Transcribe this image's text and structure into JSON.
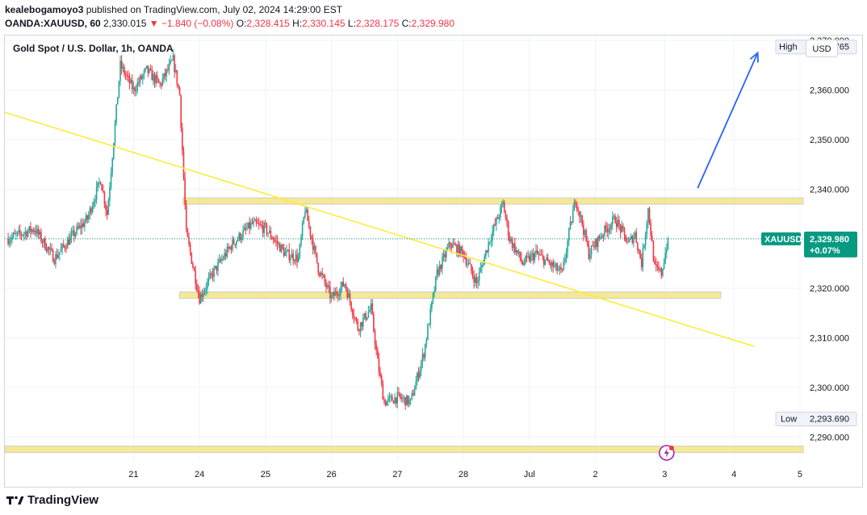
{
  "header": {
    "publisher_user": "kealebogamoyo3",
    "publisher_rest": " published on TradingView.com, July 02, 2024 14:29:00 EST",
    "symbol": "OANDA:XAUUSD, 60",
    "last": "2,330.015",
    "arrow": "▼",
    "change": "−1.840 (−0.08%)",
    "o_label": "O:",
    "o_val": "2,328.415",
    "h_label": "H:",
    "h_val": "2,330.145",
    "l_label": "L:",
    "l_val": "2,328.175",
    "c_label": "C:",
    "c_val": "2,329.980"
  },
  "plot_title": "Gold Spot / U.S. Dollar, 1h, OANDA",
  "currency_button": "USD",
  "footer_brand": "TradingView",
  "colors": {
    "up": "#26a69a",
    "down": "#f23645",
    "trendline": "#ffeb3b",
    "zone": "#f5e68c",
    "arrow": "#2962ff",
    "price_tag": "#089981",
    "grid": "#f0f3fa"
  },
  "chart_data": {
    "type": "candlestick",
    "title": "Gold Spot / U.S. Dollar, 1h, OANDA",
    "ylim": [
      2285,
      2371
    ],
    "y_ticks": [
      2290,
      2300,
      2310,
      2320,
      2330,
      2340,
      2350,
      2360,
      2370
    ],
    "y_tick_labels": [
      "2,290.000",
      "2,300.000",
      "2,310.000",
      "2,320.000",
      "2,330.000",
      "2,340.000",
      "2,350.000",
      "2,360.000",
      "2,370.000"
    ],
    "x_ticks": [
      {
        "label": "21",
        "t": 19
      },
      {
        "label": "24",
        "t": 29
      },
      {
        "label": "25",
        "t": 39
      },
      {
        "label": "26",
        "t": 49
      },
      {
        "label": "27",
        "t": 59
      },
      {
        "label": "28",
        "t": 69
      },
      {
        "label": "Jul",
        "t": 79
      },
      {
        "label": "2",
        "t": 89
      },
      {
        "label": "3",
        "t": 99.5
      },
      {
        "label": "4",
        "t": 110
      },
      {
        "label": "5",
        "t": 120
      }
    ],
    "x_range": [
      -0.5,
      120.5
    ],
    "key_points": [
      {
        "t": 0,
        "price": 2330
      },
      {
        "t": 4,
        "price": 2332
      },
      {
        "t": 7,
        "price": 2326
      },
      {
        "t": 10,
        "price": 2331
      },
      {
        "t": 12,
        "price": 2334
      },
      {
        "t": 14,
        "price": 2342
      },
      {
        "t": 15,
        "price": 2335
      },
      {
        "t": 16,
        "price": 2350
      },
      {
        "t": 17,
        "price": 2365
      },
      {
        "t": 19,
        "price": 2360
      },
      {
        "t": 21,
        "price": 2364
      },
      {
        "t": 23,
        "price": 2361
      },
      {
        "t": 25,
        "price": 2366
      },
      {
        "t": 26,
        "price": 2359
      },
      {
        "t": 27,
        "price": 2331
      },
      {
        "t": 29,
        "price": 2318
      },
      {
        "t": 31,
        "price": 2323
      },
      {
        "t": 34,
        "price": 2329
      },
      {
        "t": 37,
        "price": 2333
      },
      {
        "t": 39,
        "price": 2332
      },
      {
        "t": 42,
        "price": 2327
      },
      {
        "t": 44,
        "price": 2326
      },
      {
        "t": 45,
        "price": 2336
      },
      {
        "t": 47,
        "price": 2324
      },
      {
        "t": 49,
        "price": 2318
      },
      {
        "t": 51,
        "price": 2321
      },
      {
        "t": 53,
        "price": 2312
      },
      {
        "t": 55,
        "price": 2316
      },
      {
        "t": 56,
        "price": 2305
      },
      {
        "t": 57,
        "price": 2297
      },
      {
        "t": 59,
        "price": 2298
      },
      {
        "t": 61,
        "price": 2297
      },
      {
        "t": 63,
        "price": 2307
      },
      {
        "t": 65,
        "price": 2323
      },
      {
        "t": 67,
        "price": 2329
      },
      {
        "t": 69,
        "price": 2327
      },
      {
        "t": 71,
        "price": 2321
      },
      {
        "t": 73,
        "price": 2330
      },
      {
        "t": 75,
        "price": 2337
      },
      {
        "t": 76,
        "price": 2330
      },
      {
        "t": 78,
        "price": 2325
      },
      {
        "t": 80,
        "price": 2327
      },
      {
        "t": 82,
        "price": 2325
      },
      {
        "t": 84,
        "price": 2323
      },
      {
        "t": 85,
        "price": 2331
      },
      {
        "t": 86,
        "price": 2338
      },
      {
        "t": 87,
        "price": 2333
      },
      {
        "t": 88,
        "price": 2327
      },
      {
        "t": 90,
        "price": 2331
      },
      {
        "t": 92,
        "price": 2334
      },
      {
        "t": 94,
        "price": 2329
      },
      {
        "t": 95,
        "price": 2331
      },
      {
        "t": 96,
        "price": 2325
      },
      {
        "t": 97,
        "price": 2336
      },
      {
        "t": 98,
        "price": 2324
      },
      {
        "t": 99,
        "price": 2323
      },
      {
        "t": 100,
        "price": 2330
      }
    ],
    "last_price": 2329.98,
    "high": 2368.765,
    "low": 2293.69,
    "price_tag": {
      "symbol": "XAUUSD",
      "price": "2,329.980",
      "change": "+0.07%"
    },
    "high_tag": {
      "label": "High",
      "price": "2,368.765"
    },
    "low_tag": {
      "label": "Low",
      "price": "2,293.690"
    },
    "drawings": {
      "zones": [
        {
          "t_start": 26.5,
          "t_end": 120.5,
          "price": 2337.6
        },
        {
          "t_start": 26,
          "t_end": 108,
          "price": 2318.6
        },
        {
          "t_start": -0.5,
          "t_end": 120.5,
          "price": 2287.5
        }
      ],
      "trendline": {
        "t1": -0.5,
        "p1": 2355.5,
        "t2": 113,
        "p2": 2308.3
      },
      "arrow": {
        "t1": 104.5,
        "p1": 2340.2,
        "t2": 113.6,
        "p2": 2367.5
      }
    }
  }
}
